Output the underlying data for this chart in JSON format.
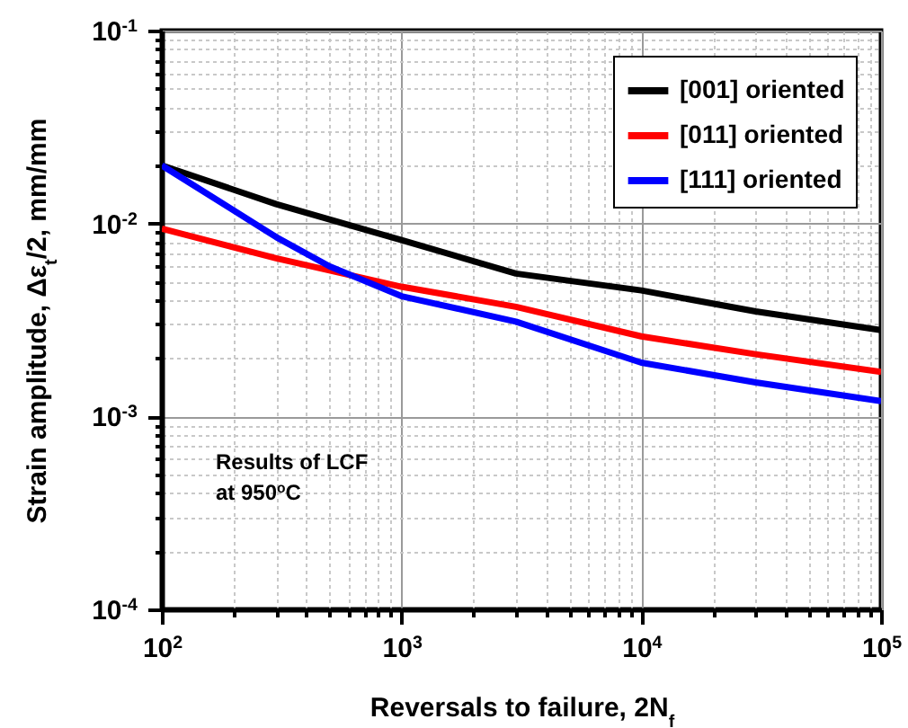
{
  "chart_data": {
    "type": "line",
    "xlabel": "Reversals to failure, 2N$_{f}$",
    "ylabel": "Strain amplitude, Δε$_{t}$/2, mm/mm",
    "x": [
      100,
      300,
      1000,
      3000,
      10000,
      30000,
      100000
    ],
    "series": [
      {
        "name": "[001] oriented",
        "color": "#000000",
        "values": [
          0.02,
          0.0126,
          0.0082,
          0.0055,
          0.0045,
          0.0035,
          0.0028
        ]
      },
      {
        "name": "[011] oriented",
        "color": "#ff0000",
        "values": [
          0.0094,
          0.0066,
          0.0047,
          0.0037,
          0.0026,
          0.0021,
          0.0017
        ]
      },
      {
        "name": "[111] oriented",
        "color": "#0000ff",
        "x": [
          100,
          300,
          500,
          1000,
          3000,
          10000,
          30000,
          100000
        ],
        "values": [
          0.02,
          0.0085,
          0.006,
          0.0042,
          0.0031,
          0.0019,
          0.0015,
          0.0012
        ]
      }
    ],
    "log": "xy",
    "xlim": [
      100,
      100000
    ],
    "ylim": [
      0.0001,
      0.1
    ],
    "xticks": [
      {
        "value": 100,
        "label": "10$^{2}$"
      },
      {
        "value": 200,
        "label": null
      },
      {
        "value": 300,
        "label": null
      },
      {
        "value": 400,
        "label": null
      },
      {
        "value": 500,
        "label": null
      },
      {
        "value": 600,
        "label": null
      },
      {
        "value": 700,
        "label": null
      },
      {
        "value": 800,
        "label": null
      },
      {
        "value": 900,
        "label": null
      },
      {
        "value": 1000,
        "label": "10$^{3}$"
      },
      {
        "value": 2000,
        "label": null
      },
      {
        "value": 3000,
        "label": null
      },
      {
        "value": 4000,
        "label": null
      },
      {
        "value": 5000,
        "label": null
      },
      {
        "value": 6000,
        "label": null
      },
      {
        "value": 7000,
        "label": null
      },
      {
        "value": 8000,
        "label": null
      },
      {
        "value": 9000,
        "label": null
      },
      {
        "value": 10000,
        "label": "10$^{4}$"
      },
      {
        "value": 20000,
        "label": null
      },
      {
        "value": 30000,
        "label": null
      },
      {
        "value": 40000,
        "label": null
      },
      {
        "value": 50000,
        "label": null
      },
      {
        "value": 60000,
        "label": null
      },
      {
        "value": 70000,
        "label": null
      },
      {
        "value": 80000,
        "label": null
      },
      {
        "value": 90000,
        "label": null
      },
      {
        "value": 100000,
        "label": "10$^{5}$"
      }
    ],
    "yticks": [
      {
        "value": 0.0001,
        "label": "10$^{-4}$"
      },
      {
        "value": 0.0002,
        "label": null
      },
      {
        "value": 0.0003,
        "label": null
      },
      {
        "value": 0.0004,
        "label": null
      },
      {
        "value": 0.0005,
        "label": null
      },
      {
        "value": 0.0006,
        "label": null
      },
      {
        "value": 0.0007,
        "label": null
      },
      {
        "value": 0.0008,
        "label": null
      },
      {
        "value": 0.0009,
        "label": null
      },
      {
        "value": 0.001,
        "label": "10$^{-3}$"
      },
      {
        "value": 0.002,
        "label": null
      },
      {
        "value": 0.003,
        "label": null
      },
      {
        "value": 0.004,
        "label": null
      },
      {
        "value": 0.005,
        "label": null
      },
      {
        "value": 0.006,
        "label": null
      },
      {
        "value": 0.007,
        "label": null
      },
      {
        "value": 0.008,
        "label": null
      },
      {
        "value": 0.009,
        "label": null
      },
      {
        "value": 0.01,
        "label": "10$^{-2}$"
      },
      {
        "value": 0.02,
        "label": null
      },
      {
        "value": 0.03,
        "label": null
      },
      {
        "value": 0.04,
        "label": null
      },
      {
        "value": 0.05,
        "label": null
      },
      {
        "value": 0.06,
        "label": null
      },
      {
        "value": 0.07,
        "label": null
      },
      {
        "value": 0.08,
        "label": null
      },
      {
        "value": 0.09,
        "label": null
      },
      {
        "value": 0.1,
        "label": "10$^{-1}$"
      }
    ],
    "grid": true,
    "legend": "top right",
    "line_style": "solid",
    "marker": "none",
    "annotations": [
      "Results of LCF",
      "at 950$^{o}$C"
    ]
  }
}
